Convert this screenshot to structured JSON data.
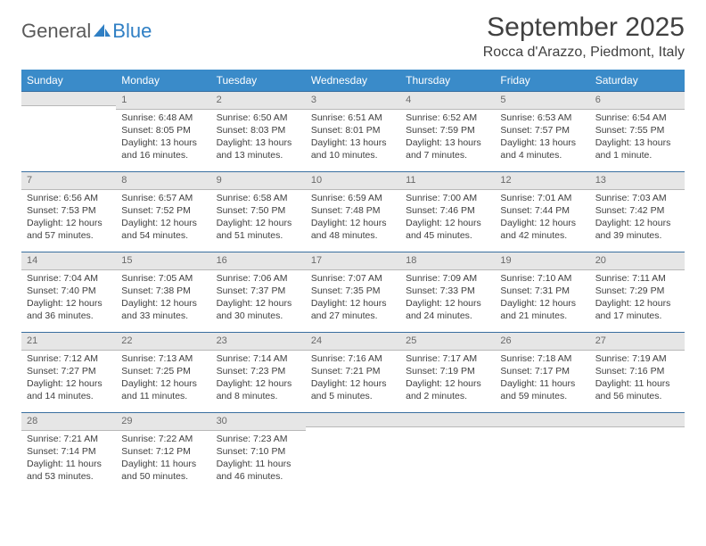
{
  "logo": {
    "text1": "General",
    "text2": "Blue"
  },
  "title": "September 2025",
  "location": "Rocca d'Arazzo, Piedmont, Italy",
  "colors": {
    "header_bg": "#3a8bc9",
    "header_text": "#ffffff",
    "daynum_bg": "#e6e6e6",
    "daynum_border_top": "#3a6fa0",
    "logo_blue": "#2f7fc4"
  },
  "day_headers": [
    "Sunday",
    "Monday",
    "Tuesday",
    "Wednesday",
    "Thursday",
    "Friday",
    "Saturday"
  ],
  "weeks": [
    [
      {
        "n": "",
        "lines": []
      },
      {
        "n": "1",
        "lines": [
          "Sunrise: 6:48 AM",
          "Sunset: 8:05 PM",
          "Daylight: 13 hours and 16 minutes."
        ]
      },
      {
        "n": "2",
        "lines": [
          "Sunrise: 6:50 AM",
          "Sunset: 8:03 PM",
          "Daylight: 13 hours and 13 minutes."
        ]
      },
      {
        "n": "3",
        "lines": [
          "Sunrise: 6:51 AM",
          "Sunset: 8:01 PM",
          "Daylight: 13 hours and 10 minutes."
        ]
      },
      {
        "n": "4",
        "lines": [
          "Sunrise: 6:52 AM",
          "Sunset: 7:59 PM",
          "Daylight: 13 hours and 7 minutes."
        ]
      },
      {
        "n": "5",
        "lines": [
          "Sunrise: 6:53 AM",
          "Sunset: 7:57 PM",
          "Daylight: 13 hours and 4 minutes."
        ]
      },
      {
        "n": "6",
        "lines": [
          "Sunrise: 6:54 AM",
          "Sunset: 7:55 PM",
          "Daylight: 13 hours and 1 minute."
        ]
      }
    ],
    [
      {
        "n": "7",
        "lines": [
          "Sunrise: 6:56 AM",
          "Sunset: 7:53 PM",
          "Daylight: 12 hours and 57 minutes."
        ]
      },
      {
        "n": "8",
        "lines": [
          "Sunrise: 6:57 AM",
          "Sunset: 7:52 PM",
          "Daylight: 12 hours and 54 minutes."
        ]
      },
      {
        "n": "9",
        "lines": [
          "Sunrise: 6:58 AM",
          "Sunset: 7:50 PM",
          "Daylight: 12 hours and 51 minutes."
        ]
      },
      {
        "n": "10",
        "lines": [
          "Sunrise: 6:59 AM",
          "Sunset: 7:48 PM",
          "Daylight: 12 hours and 48 minutes."
        ]
      },
      {
        "n": "11",
        "lines": [
          "Sunrise: 7:00 AM",
          "Sunset: 7:46 PM",
          "Daylight: 12 hours and 45 minutes."
        ]
      },
      {
        "n": "12",
        "lines": [
          "Sunrise: 7:01 AM",
          "Sunset: 7:44 PM",
          "Daylight: 12 hours and 42 minutes."
        ]
      },
      {
        "n": "13",
        "lines": [
          "Sunrise: 7:03 AM",
          "Sunset: 7:42 PM",
          "Daylight: 12 hours and 39 minutes."
        ]
      }
    ],
    [
      {
        "n": "14",
        "lines": [
          "Sunrise: 7:04 AM",
          "Sunset: 7:40 PM",
          "Daylight: 12 hours and 36 minutes."
        ]
      },
      {
        "n": "15",
        "lines": [
          "Sunrise: 7:05 AM",
          "Sunset: 7:38 PM",
          "Daylight: 12 hours and 33 minutes."
        ]
      },
      {
        "n": "16",
        "lines": [
          "Sunrise: 7:06 AM",
          "Sunset: 7:37 PM",
          "Daylight: 12 hours and 30 minutes."
        ]
      },
      {
        "n": "17",
        "lines": [
          "Sunrise: 7:07 AM",
          "Sunset: 7:35 PM",
          "Daylight: 12 hours and 27 minutes."
        ]
      },
      {
        "n": "18",
        "lines": [
          "Sunrise: 7:09 AM",
          "Sunset: 7:33 PM",
          "Daylight: 12 hours and 24 minutes."
        ]
      },
      {
        "n": "19",
        "lines": [
          "Sunrise: 7:10 AM",
          "Sunset: 7:31 PM",
          "Daylight: 12 hours and 21 minutes."
        ]
      },
      {
        "n": "20",
        "lines": [
          "Sunrise: 7:11 AM",
          "Sunset: 7:29 PM",
          "Daylight: 12 hours and 17 minutes."
        ]
      }
    ],
    [
      {
        "n": "21",
        "lines": [
          "Sunrise: 7:12 AM",
          "Sunset: 7:27 PM",
          "Daylight: 12 hours and 14 minutes."
        ]
      },
      {
        "n": "22",
        "lines": [
          "Sunrise: 7:13 AM",
          "Sunset: 7:25 PM",
          "Daylight: 12 hours and 11 minutes."
        ]
      },
      {
        "n": "23",
        "lines": [
          "Sunrise: 7:14 AM",
          "Sunset: 7:23 PM",
          "Daylight: 12 hours and 8 minutes."
        ]
      },
      {
        "n": "24",
        "lines": [
          "Sunrise: 7:16 AM",
          "Sunset: 7:21 PM",
          "Daylight: 12 hours and 5 minutes."
        ]
      },
      {
        "n": "25",
        "lines": [
          "Sunrise: 7:17 AM",
          "Sunset: 7:19 PM",
          "Daylight: 12 hours and 2 minutes."
        ]
      },
      {
        "n": "26",
        "lines": [
          "Sunrise: 7:18 AM",
          "Sunset: 7:17 PM",
          "Daylight: 11 hours and 59 minutes."
        ]
      },
      {
        "n": "27",
        "lines": [
          "Sunrise: 7:19 AM",
          "Sunset: 7:16 PM",
          "Daylight: 11 hours and 56 minutes."
        ]
      }
    ],
    [
      {
        "n": "28",
        "lines": [
          "Sunrise: 7:21 AM",
          "Sunset: 7:14 PM",
          "Daylight: 11 hours and 53 minutes."
        ]
      },
      {
        "n": "29",
        "lines": [
          "Sunrise: 7:22 AM",
          "Sunset: 7:12 PM",
          "Daylight: 11 hours and 50 minutes."
        ]
      },
      {
        "n": "30",
        "lines": [
          "Sunrise: 7:23 AM",
          "Sunset: 7:10 PM",
          "Daylight: 11 hours and 46 minutes."
        ]
      },
      {
        "n": "",
        "lines": []
      },
      {
        "n": "",
        "lines": []
      },
      {
        "n": "",
        "lines": []
      },
      {
        "n": "",
        "lines": []
      }
    ]
  ]
}
